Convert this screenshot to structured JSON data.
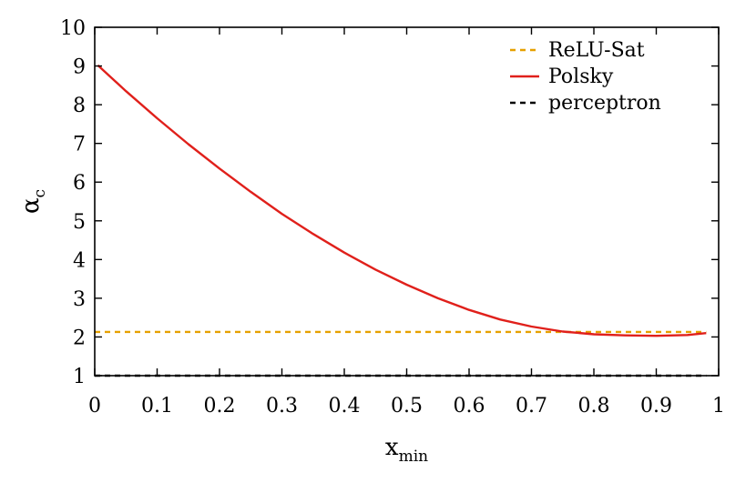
{
  "chart_data": {
    "type": "line",
    "xlabel": {
      "base": "x",
      "sub": "min"
    },
    "ylabel": {
      "base": "α",
      "sub": "c"
    },
    "xlim": [
      0,
      1
    ],
    "ylim": [
      1,
      10
    ],
    "xticks": [
      0,
      0.1,
      0.2,
      0.3,
      0.4,
      0.5,
      0.6,
      0.7,
      0.8,
      0.9,
      1
    ],
    "xtick_labels": [
      "0",
      "0.1",
      "0.2",
      "0.3",
      "0.4",
      "0.5",
      "0.6",
      "0.7",
      "0.8",
      "0.9",
      "1"
    ],
    "yticks": [
      1,
      2,
      3,
      4,
      5,
      6,
      7,
      8,
      9,
      10
    ],
    "ytick_labels": [
      "1",
      "2",
      "3",
      "4",
      "5",
      "6",
      "7",
      "8",
      "9",
      "10"
    ],
    "grid": false,
    "legend_position": "top-right",
    "series": [
      {
        "name": "ReLU-Sat",
        "style": "dashed",
        "color": "#e6a000",
        "x": [
          0,
          0.98
        ],
        "y": [
          2.13,
          2.13
        ]
      },
      {
        "name": "Polsky",
        "style": "solid",
        "color": "#e0201b",
        "x": [
          0.005,
          0.05,
          0.1,
          0.15,
          0.2,
          0.25,
          0.3,
          0.35,
          0.4,
          0.45,
          0.5,
          0.55,
          0.6,
          0.65,
          0.7,
          0.75,
          0.8,
          0.85,
          0.9,
          0.95,
          0.98
        ],
        "y": [
          9.02,
          8.35,
          7.65,
          6.98,
          6.35,
          5.75,
          5.18,
          4.66,
          4.18,
          3.74,
          3.35,
          3.0,
          2.7,
          2.45,
          2.27,
          2.14,
          2.07,
          2.04,
          2.03,
          2.05,
          2.1
        ]
      },
      {
        "name": "perceptron",
        "style": "dashed",
        "color": "#000000",
        "x": [
          0,
          0.98
        ],
        "y": [
          1.0,
          1.0
        ]
      }
    ]
  }
}
